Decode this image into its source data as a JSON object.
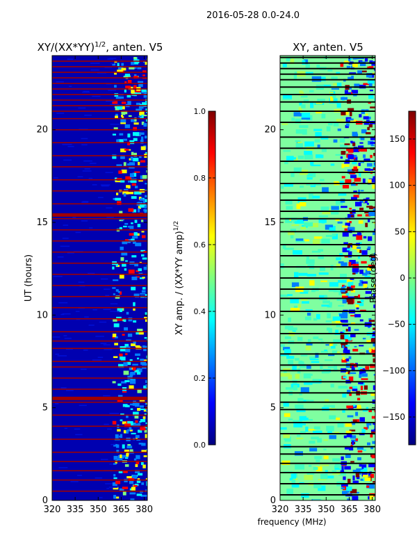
{
  "suptitle": "2016-05-28 0.0-24.0",
  "colors": {
    "jet": [
      "#00007f",
      "#0000ff",
      "#007fff",
      "#00ffff",
      "#7fff7f",
      "#ffff00",
      "#ff7f00",
      "#ff0000",
      "#7f0000"
    ],
    "flag_line": "#a00000",
    "phase_line": "#000000"
  },
  "chart_data": [
    {
      "type": "heatmap",
      "title": "XY/(XX*YY)",
      "title_superscript": "1/2",
      "title_suffix": ", anten. V5",
      "xlabel": "",
      "ylabel": "UT (hours)",
      "xlim": [
        320,
        382
      ],
      "ylim": [
        0,
        24
      ],
      "xticks": [
        320,
        335,
        350,
        365,
        380
      ],
      "yticks": [
        0,
        5,
        10,
        15,
        20
      ],
      "bright_band_start_mhz": 359,
      "flagged_rows_hours": [
        0.5,
        1.1,
        1.6,
        2.1,
        2.6,
        3.3,
        4.0,
        4.6,
        5.3,
        5.5,
        6.0,
        6.6,
        7.2,
        7.5,
        8.2,
        8.6,
        9.1,
        9.8,
        10.4,
        11.0,
        11.6,
        12.2,
        12.8,
        13.4,
        14.0,
        14.6,
        15.2,
        15.4,
        16.0,
        16.7,
        17.3,
        18.0,
        18.6,
        19.3,
        20.0,
        20.6,
        21.0,
        21.3,
        21.6,
        21.9,
        22.2,
        22.5,
        22.8,
        23.1,
        23.4,
        23.7
      ],
      "colorbar": {
        "label": "XY amp. / (XX*YY amp)",
        "label_superscript": "1/2",
        "range": [
          0,
          1
        ],
        "ticks": [
          "0.0",
          "0.2",
          "0.4",
          "0.6",
          "0.8",
          "1.0"
        ]
      }
    },
    {
      "type": "heatmap",
      "title": "XY, anten. V5",
      "xlabel": "frequency (MHz)",
      "ylabel": "",
      "xlim": [
        320,
        382
      ],
      "ylim": [
        0,
        24
      ],
      "xticks": [
        320,
        335,
        350,
        365,
        380
      ],
      "yticks": [
        0,
        5,
        10,
        15,
        20
      ],
      "bright_band_start_mhz": 359,
      "flagged_rows_hours": [
        0.3,
        0.9,
        1.5,
        2.0,
        2.5,
        2.9,
        3.6,
        4.2,
        4.9,
        5.3,
        5.8,
        6.4,
        7.0,
        7.3,
        7.9,
        8.5,
        9.0,
        9.5,
        10.2,
        10.9,
        11.4,
        12.0,
        12.6,
        13.2,
        13.8,
        14.5,
        15.2,
        15.6,
        16.2,
        16.6,
        17.1,
        17.7,
        18.3,
        19.0,
        19.6,
        20.4,
        21.0,
        21.5,
        21.9,
        22.3,
        22.7,
        23.0,
        23.3,
        23.6,
        23.9
      ],
      "colorbar": {
        "label": "Phase (deg)",
        "range": [
          -180,
          180
        ],
        "ticks": [
          "−150",
          "−100",
          "−50",
          "0",
          "50",
          "100",
          "150"
        ]
      }
    }
  ]
}
